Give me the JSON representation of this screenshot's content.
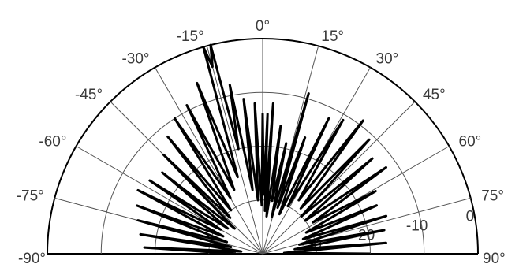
{
  "chart_data": {
    "type": "polar-line",
    "title": "",
    "theta_range_deg": [
      -90,
      90
    ],
    "theta_ticks": [
      "-90°",
      "-75°",
      "-60°",
      "-45°",
      "-30°",
      "-15°",
      "0°",
      "15°",
      "30°",
      "45°",
      "60°",
      "75°",
      "90°"
    ],
    "theta_tick_values": [
      -90,
      -75,
      -60,
      -45,
      -30,
      -15,
      0,
      15,
      30,
      45,
      60,
      75,
      90
    ],
    "r_range": [
      -40,
      0
    ],
    "r_ring_values": [
      -30,
      -20,
      -10,
      0
    ],
    "r_tick_labels": [
      "-30",
      "-20",
      "-10",
      "0"
    ],
    "grid": true,
    "series": [
      {
        "color": "#000000",
        "points": [
          [
            -90,
            -35
          ],
          [
            -87,
            -18
          ],
          [
            -84,
            -36
          ],
          [
            -81,
            -17
          ],
          [
            -78,
            -34
          ],
          [
            -75,
            -16
          ],
          [
            -72,
            -33
          ],
          [
            -69,
            -15
          ],
          [
            -66,
            -32
          ],
          [
            -63,
            -14
          ],
          [
            -60,
            -31
          ],
          [
            -57,
            -15
          ],
          [
            -54,
            -32
          ],
          [
            -51,
            -16
          ],
          [
            -48,
            -33
          ],
          [
            -45,
            -14
          ],
          [
            -42,
            -31
          ],
          [
            -39,
            -12
          ],
          [
            -36,
            -30
          ],
          [
            -33,
            -10
          ],
          [
            -30,
            -28
          ],
          [
            -27,
            -9
          ],
          [
            -24,
            -27
          ],
          [
            -21,
            -6
          ],
          [
            -18,
            -25
          ],
          [
            -16,
            0
          ],
          [
            -15,
            -4
          ],
          [
            -14,
            0
          ],
          [
            -13,
            -20
          ],
          [
            -11,
            -8
          ],
          [
            -9,
            -28
          ],
          [
            -7,
            -11
          ],
          [
            -5,
            -30
          ],
          [
            -3,
            -12
          ],
          [
            -1,
            -31
          ],
          [
            0,
            -14
          ],
          [
            1,
            -29
          ],
          [
            2,
            -14
          ],
          [
            3,
            -32
          ],
          [
            4,
            -12
          ],
          [
            6,
            -33
          ],
          [
            8,
            -16
          ],
          [
            10,
            -30
          ],
          [
            12,
            -19
          ],
          [
            14,
            -33
          ],
          [
            16,
            -9
          ],
          [
            18,
            -31
          ],
          [
            20,
            -17
          ],
          [
            23,
            -32
          ],
          [
            26,
            -12
          ],
          [
            28,
            -30
          ],
          [
            31,
            -11
          ],
          [
            34,
            -28
          ],
          [
            37,
            -9
          ],
          [
            40,
            -29
          ],
          [
            43,
            -11
          ],
          [
            46,
            -30
          ],
          [
            49,
            -13
          ],
          [
            52,
            -30
          ],
          [
            55,
            -12
          ],
          [
            58,
            -29
          ],
          [
            61,
            -16
          ],
          [
            64,
            -31
          ],
          [
            67,
            -17
          ],
          [
            70,
            -32
          ],
          [
            73,
            -16
          ],
          [
            76,
            -33
          ],
          [
            79,
            -17
          ],
          [
            82,
            -34
          ],
          [
            85,
            -17
          ],
          [
            88,
            -36
          ],
          [
            90,
            -20
          ]
        ]
      }
    ]
  }
}
